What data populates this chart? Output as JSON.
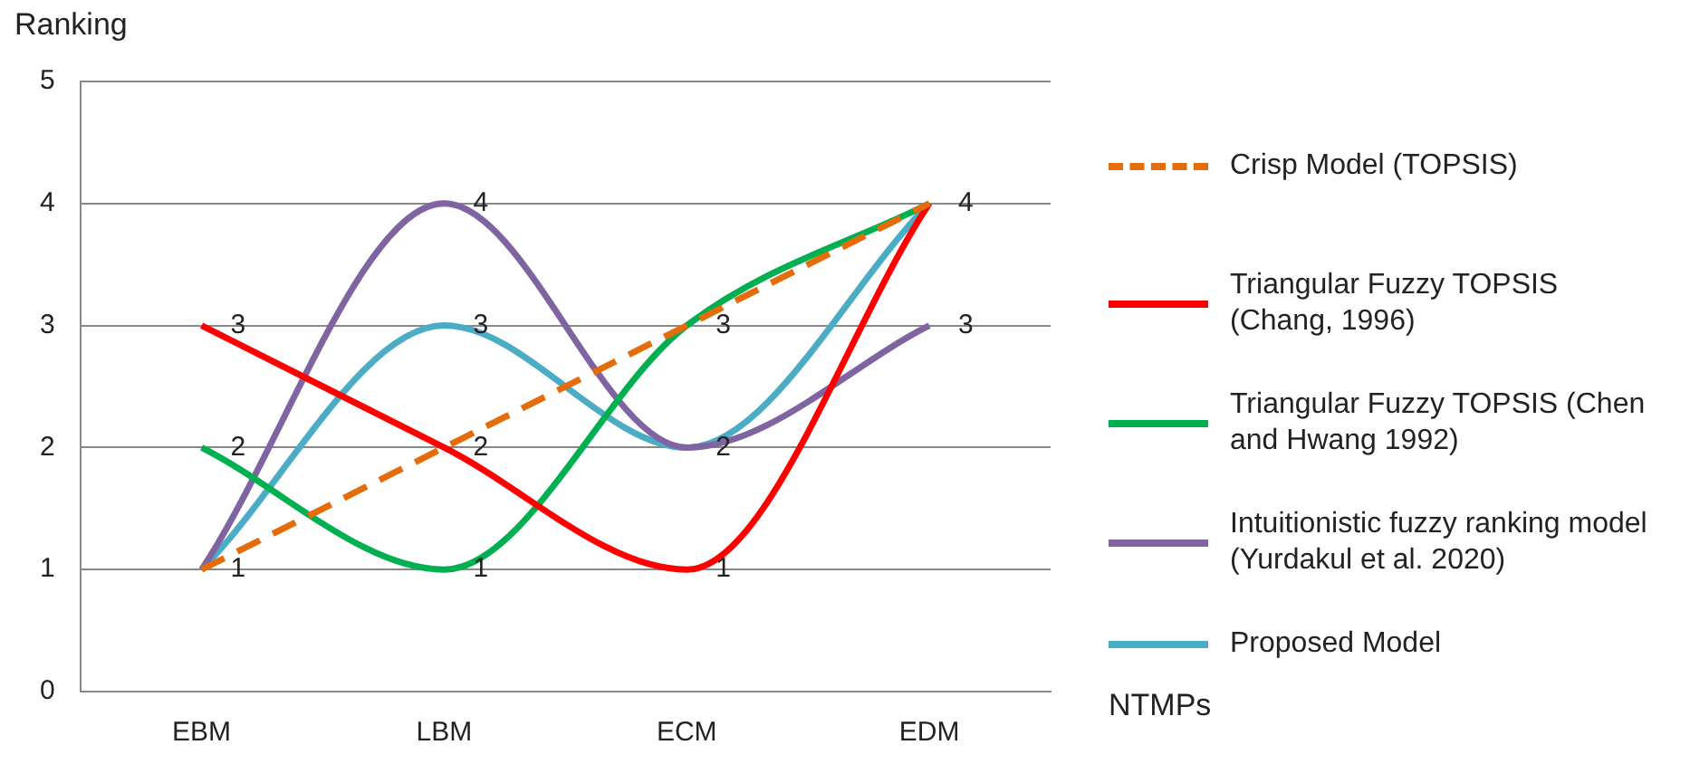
{
  "chart_data": {
    "type": "line",
    "ylabel": "Ranking",
    "xlabel": "NTMPs",
    "categories": [
      "EBM",
      "LBM",
      "ECM",
      "EDM"
    ],
    "series": [
      {
        "name": "Crisp Model (TOPSIS)",
        "color": "#e46c0a",
        "line_style": "dashed",
        "values": [
          1,
          2,
          3,
          4
        ],
        "value_labels": [
          "1",
          "2",
          "3",
          "4"
        ]
      },
      {
        "name": "Triangular Fuzzy TOPSIS (Chang, 1996)",
        "color": "#ff0000",
        "values": [
          3,
          2,
          1,
          4
        ],
        "value_labels": [
          "3",
          null,
          "1",
          null
        ]
      },
      {
        "name": "Triangular Fuzzy TOPSIS (Chen and Hwang 1992)",
        "color": "#00b050",
        "values": [
          2,
          1,
          3,
          4
        ],
        "value_labels": [
          "2",
          "1",
          null,
          null
        ]
      },
      {
        "name": "Intuitionistic fuzzy ranking model (Yurdakul et al. 2020)",
        "color": "#8064a2",
        "values": [
          1,
          4,
          2,
          3
        ],
        "value_labels": [
          null,
          "4",
          null,
          "3"
        ]
      },
      {
        "name": "Proposed Model",
        "color": "#4bacc6",
        "values": [
          1,
          3,
          2,
          4
        ],
        "value_labels": [
          null,
          "3",
          "2",
          null
        ]
      }
    ],
    "ylim": [
      0,
      5
    ],
    "yticks": [
      0,
      1,
      2,
      3,
      4,
      5
    ],
    "grid": "y",
    "legend": "right",
    "marker": "none"
  }
}
